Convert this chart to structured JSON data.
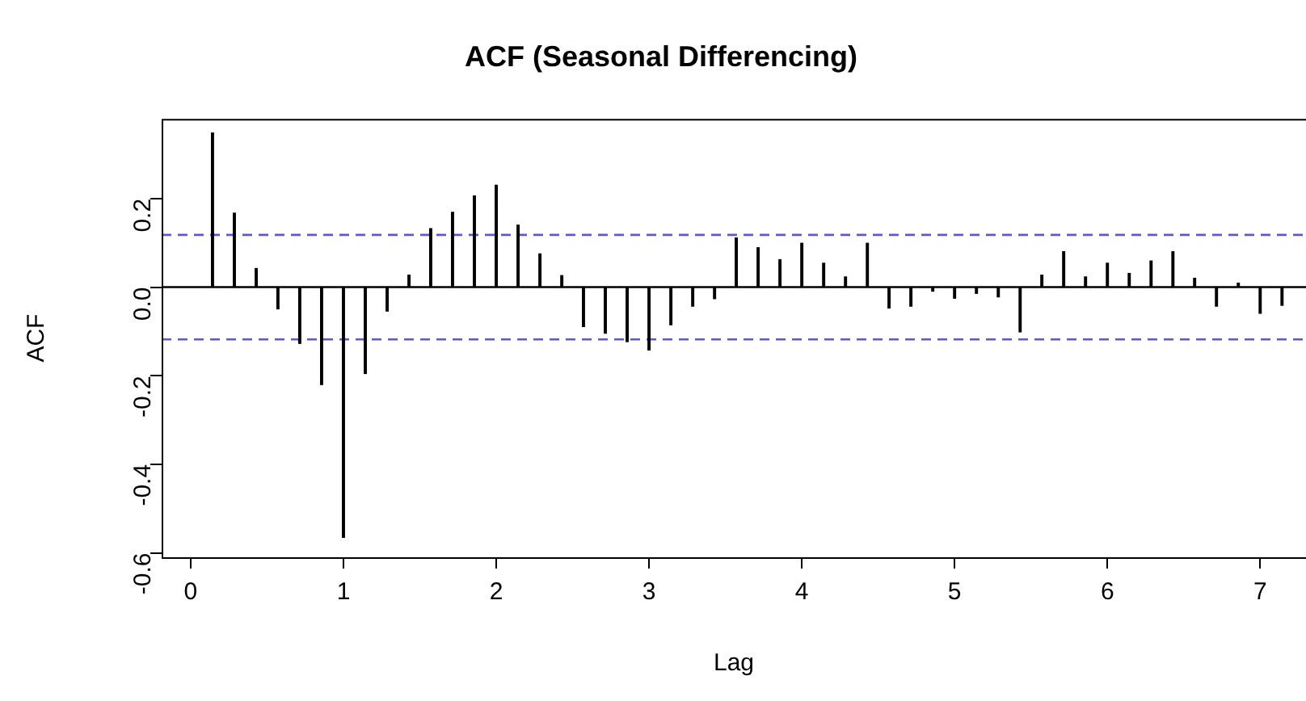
{
  "chart_data": {
    "type": "bar",
    "title": "ACF (Seasonal Differencing)",
    "xlabel": "Lag",
    "ylabel": "ACF",
    "x": [
      0.143,
      0.286,
      0.429,
      0.571,
      0.714,
      0.857,
      1,
      1.143,
      1.286,
      1.429,
      1.571,
      1.714,
      1.857,
      2,
      2.143,
      2.286,
      2.429,
      2.571,
      2.714,
      2.857,
      3,
      3.143,
      3.286,
      3.429,
      3.571,
      3.714,
      3.857,
      4,
      4.143,
      4.286,
      4.429,
      4.571,
      4.714,
      4.857,
      5,
      5.143,
      5.286,
      5.429,
      5.571,
      5.714,
      5.857,
      6,
      6.143,
      6.286,
      6.429,
      6.571,
      6.714,
      6.857,
      7,
      7.143
    ],
    "series": [
      {
        "color": "#000000",
        "values": [
          0.348,
          0.167,
          0.042,
          -0.049,
          -0.127,
          -0.22,
          -0.565,
          -0.195,
          -0.054,
          0.027,
          0.132,
          0.169,
          0.206,
          0.23,
          0.14,
          0.075,
          0.026,
          -0.089,
          -0.104,
          -0.123,
          -0.142,
          -0.085,
          -0.043,
          -0.026,
          0.111,
          0.089,
          0.062,
          0.099,
          0.054,
          0.023,
          0.099,
          -0.047,
          -0.043,
          -0.009,
          -0.025,
          -0.014,
          -0.022,
          -0.101,
          0.027,
          0.08,
          0.023,
          0.054,
          0.031,
          0.059,
          0.08,
          0.02,
          -0.043,
          0.009,
          -0.059,
          -0.041
        ]
      }
    ],
    "xlim": [
      -0.19,
      7.3
    ],
    "xticks": [
      0,
      1,
      2,
      3,
      4,
      5,
      6,
      7
    ],
    "ylim": [
      -0.61,
      0.38
    ],
    "yticks": [
      -0.6,
      -0.4,
      -0.2,
      {
        "value": 0,
        "label": "0.0"
      },
      0.2
    ],
    "ref_lines": [
      {
        "axis": "y",
        "value": 0,
        "color": "#000000",
        "line_style": "solid"
      },
      {
        "axis": "y",
        "value": 0.118,
        "color": "#5b5bc8",
        "line_style": "dashed"
      },
      {
        "axis": "y",
        "value": -0.118,
        "color": "#5b5bc8",
        "line_style": "dashed"
      }
    ],
    "grid": false,
    "legend": false
  }
}
